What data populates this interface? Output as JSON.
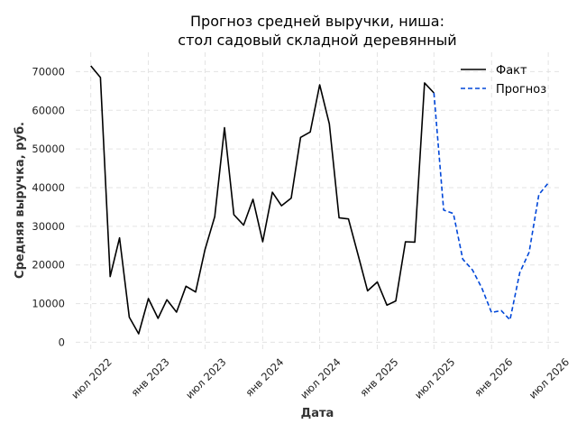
{
  "chart_data": {
    "type": "line",
    "title_lines": [
      "Прогноз средней выручки, ниша:",
      "стол садовый складной деревянный"
    ],
    "xlabel": "Дата",
    "ylabel": "Средняя выручка, руб.",
    "ylim": [
      -2000,
      75000
    ],
    "xlim": [
      "2022-05-14",
      "2026-08-10"
    ],
    "grid": true,
    "legend_position": "top-right",
    "y_ticks": [
      {
        "value": 0,
        "label": "0"
      },
      {
        "value": 10000,
        "label": "10000"
      },
      {
        "value": 20000,
        "label": "20000"
      },
      {
        "value": 30000,
        "label": "30000"
      },
      {
        "value": 40000,
        "label": "40000"
      },
      {
        "value": 50000,
        "label": "50000"
      },
      {
        "value": 60000,
        "label": "60000"
      },
      {
        "value": 70000,
        "label": "70000"
      }
    ],
    "x_ticks": [
      {
        "date": "2022-07-01",
        "label": "июл 2022"
      },
      {
        "date": "2023-01-01",
        "label": "янв 2023"
      },
      {
        "date": "2023-07-01",
        "label": "июл 2023"
      },
      {
        "date": "2024-01-01",
        "label": "янв 2024"
      },
      {
        "date": "2024-07-01",
        "label": "июл 2024"
      },
      {
        "date": "2025-01-01",
        "label": "янв 2025"
      },
      {
        "date": "2025-07-01",
        "label": "июл 2025"
      },
      {
        "date": "2026-01-01",
        "label": "янв 2026"
      },
      {
        "date": "2026-07-01",
        "label": "июл 2026"
      }
    ],
    "series": [
      {
        "name": "Факт",
        "color": "#000000",
        "style": "solid",
        "x": [
          "2022-07-01",
          "2022-08-01",
          "2022-09-01",
          "2022-10-01",
          "2022-11-01",
          "2022-12-01",
          "2023-01-01",
          "2023-02-01",
          "2023-03-01",
          "2023-04-01",
          "2023-05-01",
          "2023-06-01",
          "2023-07-01",
          "2023-08-01",
          "2023-09-01",
          "2023-10-01",
          "2023-11-01",
          "2023-12-01",
          "2024-01-01",
          "2024-02-01",
          "2024-03-01",
          "2024-04-01",
          "2024-05-01",
          "2024-06-01",
          "2024-07-01",
          "2024-08-01",
          "2024-09-01",
          "2024-10-01",
          "2024-11-01",
          "2024-12-01",
          "2025-01-01",
          "2025-02-01",
          "2025-03-01",
          "2025-04-01",
          "2025-05-01",
          "2025-06-01",
          "2025-07-01"
        ],
        "values": [
          71500,
          68500,
          17000,
          27000,
          6500,
          2200,
          11300,
          6200,
          11000,
          7800,
          14500,
          13000,
          24000,
          32500,
          55500,
          33000,
          30300,
          37000,
          26000,
          38800,
          35300,
          37300,
          53000,
          54400,
          66600,
          56500,
          32200,
          31900,
          22500,
          13300,
          15600,
          9600,
          10700,
          26000,
          25900,
          67100,
          64500
        ]
      },
      {
        "name": "Прогноз",
        "color": "#0047d9",
        "style": "dashed",
        "x": [
          "2025-07-01",
          "2025-08-01",
          "2025-09-01",
          "2025-10-01",
          "2025-11-01",
          "2025-12-01",
          "2026-01-01",
          "2026-02-01",
          "2026-03-01",
          "2026-04-01",
          "2026-05-01",
          "2026-06-01",
          "2026-07-01"
        ],
        "values": [
          64500,
          34200,
          33300,
          21500,
          18700,
          14000,
          7700,
          8200,
          5800,
          18000,
          23300,
          38200,
          41200
        ]
      }
    ]
  }
}
